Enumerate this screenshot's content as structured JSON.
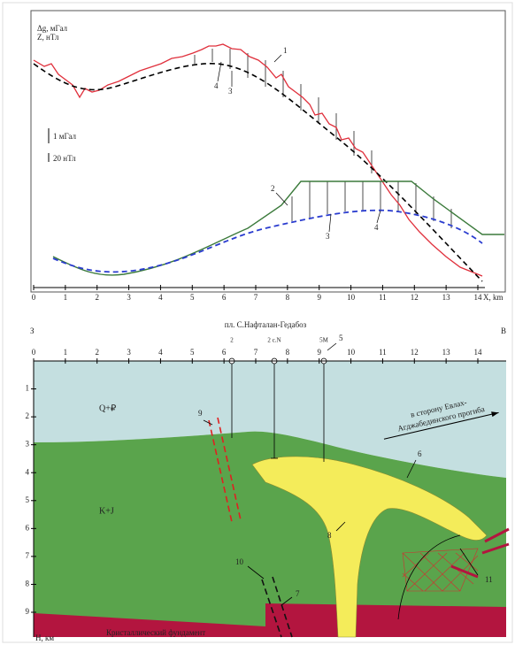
{
  "top_panel": {
    "y_label_1": "Δg, мГал",
    "y_label_2": "Z, нТл",
    "scale_1": "1 мГал",
    "scale_2": "20 нТл",
    "x_label": "X, km",
    "x_ticks": [
      0,
      1,
      2,
      3,
      4,
      5,
      6,
      7,
      8,
      9,
      10,
      11,
      12,
      13,
      14
    ],
    "curve_labels": [
      "1",
      "2",
      "3",
      "4",
      "3",
      "4"
    ]
  },
  "section": {
    "west": "З",
    "east": "В",
    "profile": "пл. С.Нафталан-Гедабоз",
    "x_ticks": [
      0,
      1,
      2,
      3,
      4,
      5,
      6,
      7,
      8,
      9,
      10,
      11,
      12,
      13,
      14
    ],
    "depth_ticks": [
      1,
      2,
      3,
      4,
      5,
      6,
      7,
      8,
      9
    ],
    "depth_label": "Н, км",
    "wells": [
      "2",
      "2 с.N",
      "5М"
    ],
    "callouts": [
      "5",
      "6",
      "7",
      "8",
      "9",
      "10",
      "11"
    ],
    "units": [
      "Q+₽",
      "K+J"
    ],
    "basement": "Кристаллический фундамент",
    "direction": [
      "в сторону Евлах-",
      "Агджабединского прогиба"
    ]
  }
}
